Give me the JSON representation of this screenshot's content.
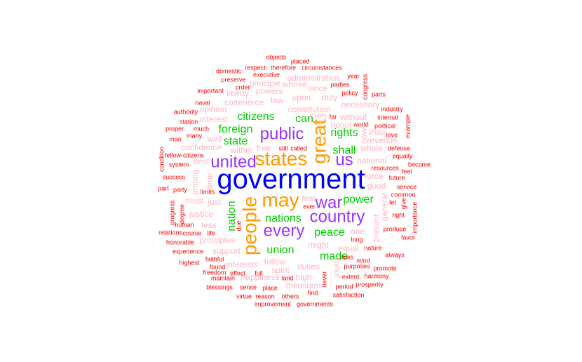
{
  "chart_data": {
    "type": "wordcloud",
    "colors": {
      "tier1": "#0000FF",
      "tier2": "#FF9900",
      "tier3": "#9933FF",
      "tier4": "#00CC00",
      "tier5": "#FFB6C1",
      "tier6": "#FF0000"
    },
    "words": [
      {
        "text": "government",
        "tier": 1
      },
      {
        "text": "states",
        "tier": 2
      },
      {
        "text": "great",
        "tier": 2
      },
      {
        "text": "may",
        "tier": 2
      },
      {
        "text": "people",
        "tier": 2
      },
      {
        "text": "public",
        "tier": 3
      },
      {
        "text": "united",
        "tier": 3
      },
      {
        "text": "us",
        "tier": 3
      },
      {
        "text": "country",
        "tier": 3
      },
      {
        "text": "war",
        "tier": 3
      },
      {
        "text": "every",
        "tier": 3
      },
      {
        "text": "citizens",
        "tier": 4
      },
      {
        "text": "can",
        "tier": 4
      },
      {
        "text": "foreign",
        "tier": 4
      },
      {
        "text": "state",
        "tier": 4
      },
      {
        "text": "rights",
        "tier": 4
      },
      {
        "text": "shall",
        "tier": 4
      },
      {
        "text": "nations",
        "tier": 4
      },
      {
        "text": "power",
        "tier": 4
      },
      {
        "text": "nation",
        "tier": 4
      },
      {
        "text": "peace",
        "tier": 4
      },
      {
        "text": "union",
        "tier": 4
      },
      {
        "text": "made",
        "tier": 4
      },
      {
        "text": "constitution",
        "tier": 5
      },
      {
        "text": "upon",
        "tier": 5
      },
      {
        "text": "commerce",
        "tier": 5
      },
      {
        "text": "powers",
        "tier": 5
      },
      {
        "text": "since",
        "tier": 5
      },
      {
        "text": "duty",
        "tier": 5
      },
      {
        "text": "necessary",
        "tier": 5
      },
      {
        "text": "without",
        "tier": 5
      },
      {
        "text": "confidence",
        "tier": 5
      },
      {
        "text": "well",
        "tier": 5
      },
      {
        "text": "within",
        "tier": 5
      },
      {
        "text": "free",
        "tier": 5
      },
      {
        "text": "best",
        "tier": 5
      },
      {
        "text": "time",
        "tier": 5
      },
      {
        "text": "among",
        "tier": 5
      },
      {
        "text": "national",
        "tier": 5
      },
      {
        "text": "whole",
        "tier": 5
      },
      {
        "text": "force",
        "tier": 5
      },
      {
        "text": "good",
        "tier": 5
      },
      {
        "text": "just",
        "tier": 5
      },
      {
        "text": "justice",
        "tier": 5
      },
      {
        "text": "less",
        "tier": 5
      },
      {
        "text": "principles",
        "tier": 5
      },
      {
        "text": "support",
        "tier": 5
      },
      {
        "text": "interests",
        "tier": 5
      },
      {
        "text": "fellow",
        "tier": 5
      },
      {
        "text": "spirit",
        "tier": 5
      },
      {
        "text": "duties",
        "tier": 5
      },
      {
        "text": "happiness",
        "tier": 5
      },
      {
        "text": "high",
        "tier": 5
      },
      {
        "text": "measures",
        "tier": 5
      },
      {
        "text": "equal",
        "tier": 5
      },
      {
        "text": "one",
        "tier": 5
      },
      {
        "text": "present",
        "tier": 5
      },
      {
        "text": "general",
        "tier": 5
      },
      {
        "text": "first",
        "tier": 5
      },
      {
        "text": "years",
        "tier": 5
      },
      {
        "text": "law",
        "tier": 5
      },
      {
        "text": "trust",
        "tier": 5
      },
      {
        "text": "revenue",
        "tier": 5
      },
      {
        "text": "administration",
        "tier": 5
      },
      {
        "text": "principle",
        "tier": 5
      },
      {
        "text": "whose",
        "tier": 5
      },
      {
        "text": "liberty",
        "tier": 5
      },
      {
        "text": "opinion",
        "tier": 5
      },
      {
        "text": "interest",
        "tier": 5
      },
      {
        "text": "men",
        "tier": 5
      },
      {
        "text": "honor",
        "tier": 5
      },
      {
        "text": "now",
        "tier": 5
      },
      {
        "text": "must",
        "tier": 5
      },
      {
        "text": "might",
        "tier": 5
      },
      {
        "text": "objects",
        "tier": 6
      },
      {
        "text": "placed",
        "tier": 6
      },
      {
        "text": "domestic",
        "tier": 6
      },
      {
        "text": "respect",
        "tier": 6
      },
      {
        "text": "therefore",
        "tier": 6
      },
      {
        "text": "circumstances",
        "tier": 6
      },
      {
        "text": "preserve",
        "tier": 6
      },
      {
        "text": "executive",
        "tier": 6
      },
      {
        "text": "year",
        "tier": 6
      },
      {
        "text": "congress",
        "tier": 6
      },
      {
        "text": "order",
        "tier": 6
      },
      {
        "text": "parties",
        "tier": 6
      },
      {
        "text": "important",
        "tier": 6
      },
      {
        "text": "policy",
        "tier": 6
      },
      {
        "text": "parts",
        "tier": 6
      },
      {
        "text": "naval",
        "tier": 6
      },
      {
        "text": "industry",
        "tier": 6
      },
      {
        "text": "authority",
        "tier": 6
      },
      {
        "text": "internal",
        "tier": 6
      },
      {
        "text": "station",
        "tier": 6
      },
      {
        "text": "far",
        "tier": 6
      },
      {
        "text": "world",
        "tier": 6
      },
      {
        "text": "political",
        "tier": 6
      },
      {
        "text": "example",
        "tier": 6
      },
      {
        "text": "proper",
        "tier": 6
      },
      {
        "text": "much",
        "tier": 6
      },
      {
        "text": "love",
        "tier": 6
      },
      {
        "text": "many",
        "tier": 6
      },
      {
        "text": "man",
        "tier": 6
      },
      {
        "text": "still",
        "tier": 6
      },
      {
        "text": "called",
        "tier": 6
      },
      {
        "text": "defense",
        "tier": 6
      },
      {
        "text": "equally",
        "tier": 6
      },
      {
        "text": "fellow-citizens",
        "tier": 6
      },
      {
        "text": "condition",
        "tier": 6
      },
      {
        "text": "system",
        "tier": 6
      },
      {
        "text": "become",
        "tier": 6
      },
      {
        "text": "resources",
        "tier": 6
      },
      {
        "text": "feel",
        "tier": 6
      },
      {
        "text": "success",
        "tier": 6
      },
      {
        "text": "future",
        "tier": 6
      },
      {
        "text": "part",
        "tier": 6
      },
      {
        "text": "party",
        "tier": 6
      },
      {
        "text": "service",
        "tier": 6
      },
      {
        "text": "limits",
        "tier": 6
      },
      {
        "text": "common",
        "tier": 6
      },
      {
        "text": "give",
        "tier": 6
      },
      {
        "text": "let",
        "tier": 6
      },
      {
        "text": "right",
        "tier": 6
      },
      {
        "text": "progress",
        "tier": 6
      },
      {
        "text": "degree",
        "tier": 6
      },
      {
        "text": "due",
        "tier": 6
      },
      {
        "text": "ever",
        "tier": 6
      },
      {
        "text": "importance",
        "tier": 6
      },
      {
        "text": "human",
        "tier": 6
      },
      {
        "text": "produce",
        "tier": 6
      },
      {
        "text": "relations",
        "tier": 6
      },
      {
        "text": "course",
        "tier": 6
      },
      {
        "text": "life",
        "tier": 6
      },
      {
        "text": "favor",
        "tier": 6
      },
      {
        "text": "long",
        "tier": 6
      },
      {
        "text": "honorable",
        "tier": 6
      },
      {
        "text": "nature",
        "tier": 6
      },
      {
        "text": "always",
        "tier": 6
      },
      {
        "text": "experience",
        "tier": 6
      },
      {
        "text": "laws",
        "tier": 6
      },
      {
        "text": "faithful",
        "tier": 6
      },
      {
        "text": "mind",
        "tier": 6
      },
      {
        "text": "highest",
        "tier": 6
      },
      {
        "text": "found",
        "tier": 6
      },
      {
        "text": "purposes",
        "tier": 6
      },
      {
        "text": "promote",
        "tier": 6
      },
      {
        "text": "freedom",
        "tier": 6
      },
      {
        "text": "effect",
        "tier": 6
      },
      {
        "text": "full",
        "tier": 6
      },
      {
        "text": "extent",
        "tier": 6
      },
      {
        "text": "harmony",
        "tier": 6
      },
      {
        "text": "maintain",
        "tier": 6
      },
      {
        "text": "land",
        "tier": 6
      },
      {
        "text": "never",
        "tier": 6
      },
      {
        "text": "period",
        "tier": 6
      },
      {
        "text": "prosperity",
        "tier": 6
      },
      {
        "text": "blessings",
        "tier": 6
      },
      {
        "text": "sense",
        "tier": 6
      },
      {
        "text": "place",
        "tier": 6
      },
      {
        "text": "virtue",
        "tier": 6
      },
      {
        "text": "reason",
        "tier": 6
      },
      {
        "text": "others",
        "tier": 6
      },
      {
        "text": "find",
        "tier": 6
      },
      {
        "text": "satisfaction",
        "tier": 6
      },
      {
        "text": "improvement",
        "tier": 6
      },
      {
        "text": "governments",
        "tier": 6
      }
    ]
  }
}
